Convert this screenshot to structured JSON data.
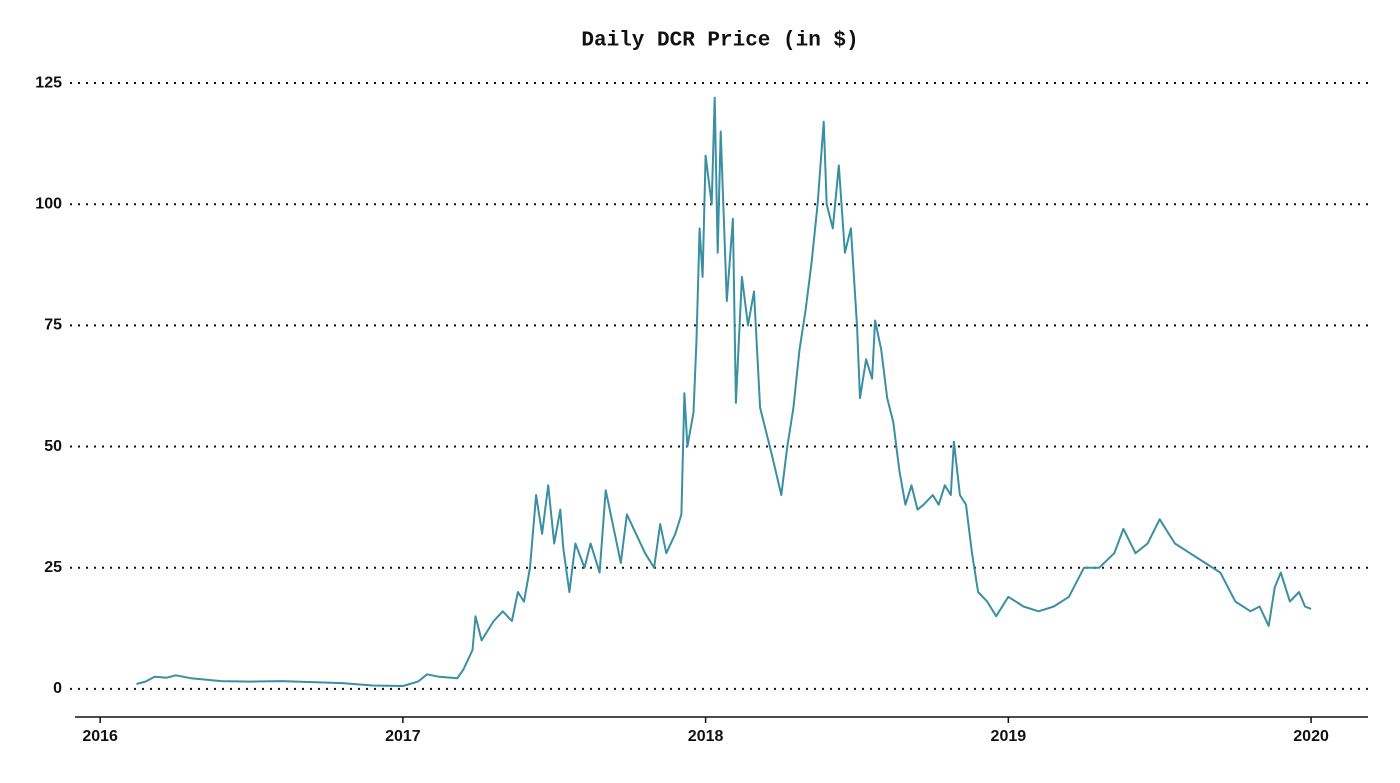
{
  "chart_data": {
    "type": "line",
    "title": "Daily DCR Price (in $)",
    "x": [
      2016.12,
      2016.15,
      2016.18,
      2016.22,
      2016.25,
      2016.3,
      2016.4,
      2016.5,
      2016.6,
      2016.7,
      2016.8,
      2016.9,
      2017.0,
      2017.05,
      2017.08,
      2017.12,
      2017.18,
      2017.2,
      2017.23,
      2017.24,
      2017.26,
      2017.3,
      2017.33,
      2017.36,
      2017.38,
      2017.4,
      2017.42,
      2017.44,
      2017.46,
      2017.48,
      2017.5,
      2017.52,
      2017.53,
      2017.55,
      2017.57,
      2017.6,
      2017.62,
      2017.65,
      2017.67,
      2017.7,
      2017.72,
      2017.74,
      2017.77,
      2017.8,
      2017.83,
      2017.85,
      2017.87,
      2017.9,
      2017.92,
      2017.93,
      2017.94,
      2017.96,
      2017.97,
      2017.98,
      2017.99,
      2018.0,
      2018.02,
      2018.03,
      2018.04,
      2018.05,
      2018.07,
      2018.09,
      2018.1,
      2018.12,
      2018.14,
      2018.16,
      2018.18,
      2018.2,
      2018.22,
      2018.25,
      2018.27,
      2018.29,
      2018.31,
      2018.33,
      2018.35,
      2018.37,
      2018.39,
      2018.4,
      2018.42,
      2018.44,
      2018.46,
      2018.48,
      2018.5,
      2018.51,
      2018.53,
      2018.55,
      2018.56,
      2018.58,
      2018.6,
      2018.62,
      2018.64,
      2018.66,
      2018.68,
      2018.7,
      2018.72,
      2018.75,
      2018.77,
      2018.79,
      2018.81,
      2018.82,
      2018.84,
      2018.86,
      2018.88,
      2018.9,
      2018.93,
      2018.96,
      2019.0,
      2019.05,
      2019.1,
      2019.15,
      2019.2,
      2019.25,
      2019.3,
      2019.35,
      2019.38,
      2019.42,
      2019.46,
      2019.5,
      2019.55,
      2019.6,
      2019.65,
      2019.7,
      2019.75,
      2019.8,
      2019.83,
      2019.86,
      2019.88,
      2019.9,
      2019.93,
      2019.96,
      2019.98,
      2020.0
    ],
    "series": [
      {
        "color": "#3b8fa3",
        "values": [
          1,
          1.5,
          2.5,
          2.3,
          2.8,
          2.2,
          1.6,
          1.5,
          1.6,
          1.4,
          1.2,
          0.7,
          0.6,
          1.5,
          3,
          2.5,
          2.2,
          4,
          8,
          15,
          10,
          14,
          16,
          14,
          20,
          18,
          25,
          40,
          32,
          42,
          30,
          37,
          29,
          20,
          30,
          25,
          30,
          24,
          41,
          32,
          26,
          36,
          32,
          28,
          25,
          34,
          28,
          32,
          36,
          61,
          50,
          57,
          72,
          95,
          85,
          110,
          100,
          122,
          90,
          115,
          80,
          97,
          59,
          85,
          75,
          82,
          58,
          53,
          48,
          40,
          50,
          58,
          70,
          78,
          88,
          100,
          117,
          100,
          95,
          108,
          90,
          95,
          75,
          60,
          68,
          64,
          76,
          70,
          60,
          55,
          45,
          38,
          42,
          37,
          38,
          40,
          38,
          42,
          40,
          51,
          40,
          38,
          28,
          20,
          18,
          15,
          19,
          17,
          16,
          17,
          19,
          25,
          25,
          28,
          33,
          28,
          30,
          35,
          30,
          28,
          26,
          24,
          18,
          16,
          17,
          13,
          21,
          24,
          18,
          20,
          17,
          16.5
        ]
      }
    ],
    "xlim": [
      2015.917,
      2020.188
    ],
    "xticks": [
      2016,
      2017,
      2018,
      2019,
      2020
    ],
    "ylim": [
      -5.8,
      128
    ],
    "yticks": [
      0,
      25,
      50,
      75,
      100,
      125
    ],
    "grid": true
  }
}
